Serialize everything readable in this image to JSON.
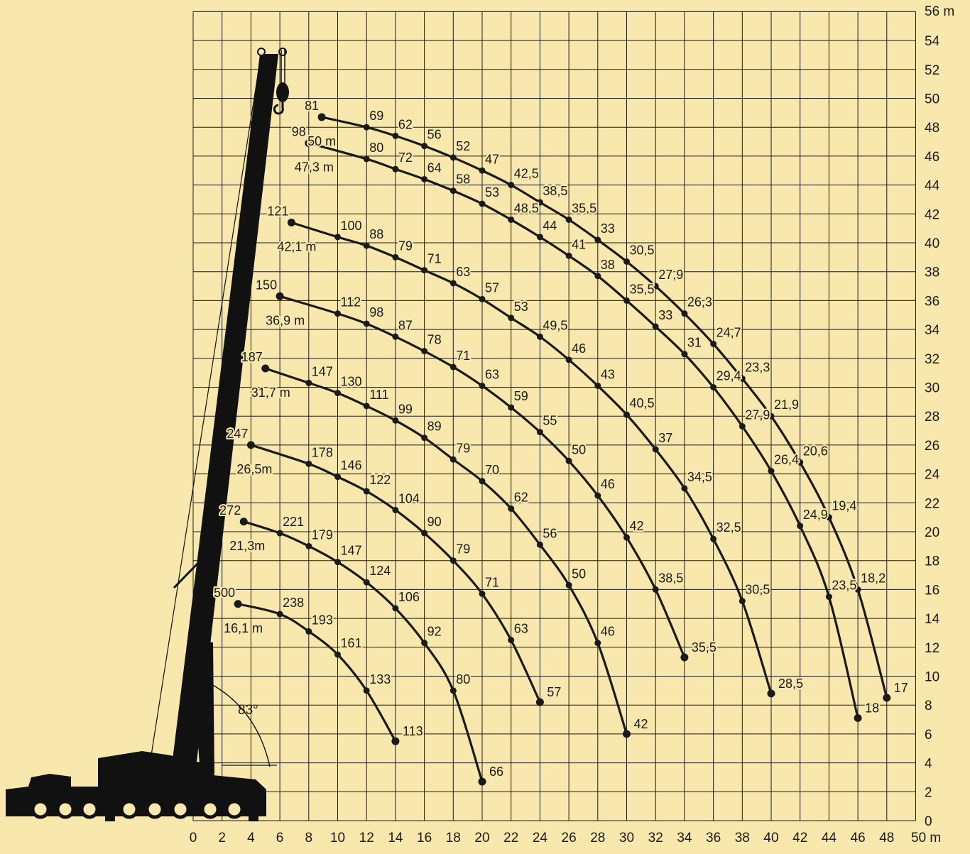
{
  "chart_data": {
    "type": "line",
    "title": "",
    "x_unit_label": "50 m",
    "y_unit_label": "56 m",
    "x_ticks": [
      "0",
      "2",
      "4",
      "6",
      "8",
      "10",
      "12",
      "14",
      "16",
      "18",
      "20",
      "22",
      "24",
      "26",
      "28",
      "30",
      "32",
      "34",
      "36",
      "38",
      "40",
      "42",
      "44",
      "46",
      "48"
    ],
    "y_ticks": [
      "0",
      "2",
      "4",
      "6",
      "8",
      "10",
      "12",
      "14",
      "16",
      "18",
      "20",
      "22",
      "24",
      "26",
      "28",
      "30",
      "32",
      "34",
      "36",
      "38",
      "40",
      "42",
      "44",
      "46",
      "48",
      "50",
      "52",
      "54"
    ],
    "xlim": [
      0,
      50
    ],
    "ylim": [
      0,
      56
    ],
    "grid": true,
    "boom_angle_label": "83°",
    "series": [
      {
        "name": "16,1 m",
        "points": [
          {
            "x": 3.1,
            "y": 15.0,
            "label": "500"
          },
          {
            "x": 6,
            "y": 14.3,
            "label": "238"
          },
          {
            "x": 8,
            "y": 13.1,
            "label": "193"
          },
          {
            "x": 10,
            "y": 11.5,
            "label": "161"
          },
          {
            "x": 12,
            "y": 9.0,
            "label": "133"
          },
          {
            "x": 14,
            "y": 5.5,
            "label": "113"
          }
        ]
      },
      {
        "name": "21,3m",
        "points": [
          {
            "x": 3.5,
            "y": 20.7,
            "label": "272"
          },
          {
            "x": 6,
            "y": 19.9,
            "label": "221"
          },
          {
            "x": 8,
            "y": 19.0,
            "label": "179"
          },
          {
            "x": 10,
            "y": 17.9,
            "label": "147"
          },
          {
            "x": 12,
            "y": 16.5,
            "label": "124"
          },
          {
            "x": 14,
            "y": 14.7,
            "label": "106"
          },
          {
            "x": 16,
            "y": 12.3,
            "label": "92"
          },
          {
            "x": 18,
            "y": 9.0,
            "label": "80"
          },
          {
            "x": 20,
            "y": 2.7,
            "label": "66"
          }
        ]
      },
      {
        "name": "26,5m",
        "points": [
          {
            "x": 4.0,
            "y": 26.0,
            "label": "247"
          },
          {
            "x": 8,
            "y": 24.7,
            "label": "178"
          },
          {
            "x": 10,
            "y": 23.8,
            "label": "146"
          },
          {
            "x": 12,
            "y": 22.8,
            "label": "122"
          },
          {
            "x": 14,
            "y": 21.5,
            "label": "104"
          },
          {
            "x": 16,
            "y": 19.9,
            "label": "90"
          },
          {
            "x": 18,
            "y": 18.0,
            "label": "79"
          },
          {
            "x": 20,
            "y": 15.7,
            "label": "71"
          },
          {
            "x": 22,
            "y": 12.5,
            "label": "63"
          },
          {
            "x": 24,
            "y": 8.2,
            "label": "57"
          }
        ]
      },
      {
        "name": "31,7 m",
        "points": [
          {
            "x": 5.0,
            "y": 31.3,
            "label": "187"
          },
          {
            "x": 8,
            "y": 30.3,
            "label": "147"
          },
          {
            "x": 10,
            "y": 29.6,
            "label": "130"
          },
          {
            "x": 12,
            "y": 28.7,
            "label": "111"
          },
          {
            "x": 14,
            "y": 27.7,
            "label": "99"
          },
          {
            "x": 16,
            "y": 26.5,
            "label": "89"
          },
          {
            "x": 18,
            "y": 25.0,
            "label": "79"
          },
          {
            "x": 20,
            "y": 23.5,
            "label": "70"
          },
          {
            "x": 22,
            "y": 21.6,
            "label": "62"
          },
          {
            "x": 24,
            "y": 19.1,
            "label": "56"
          },
          {
            "x": 26,
            "y": 16.3,
            "label": "50"
          },
          {
            "x": 28,
            "y": 12.3,
            "label": "46"
          },
          {
            "x": 30,
            "y": 6.0,
            "label": "42"
          }
        ]
      },
      {
        "name": "36,9 m",
        "points": [
          {
            "x": 6.0,
            "y": 36.3,
            "label": "150"
          },
          {
            "x": 10,
            "y": 35.1,
            "label": "112"
          },
          {
            "x": 12,
            "y": 34.4,
            "label": "98"
          },
          {
            "x": 14,
            "y": 33.5,
            "label": "87"
          },
          {
            "x": 16,
            "y": 32.5,
            "label": "78"
          },
          {
            "x": 18,
            "y": 31.4,
            "label": "71"
          },
          {
            "x": 20,
            "y": 30.1,
            "label": "63"
          },
          {
            "x": 22,
            "y": 28.6,
            "label": "59"
          },
          {
            "x": 24,
            "y": 26.9,
            "label": "55"
          },
          {
            "x": 26,
            "y": 24.9,
            "label": "50"
          },
          {
            "x": 28,
            "y": 22.5,
            "label": "46"
          },
          {
            "x": 30,
            "y": 19.6,
            "label": "42"
          },
          {
            "x": 32,
            "y": 16.0,
            "label": "38,5"
          },
          {
            "x": 34,
            "y": 11.3,
            "label": "35,5"
          }
        ]
      },
      {
        "name": "42,1 m",
        "points": [
          {
            "x": 6.8,
            "y": 41.4,
            "label": "121"
          },
          {
            "x": 10,
            "y": 40.4,
            "label": "100"
          },
          {
            "x": 12,
            "y": 39.8,
            "label": "88"
          },
          {
            "x": 14,
            "y": 39.0,
            "label": "79"
          },
          {
            "x": 16,
            "y": 38.1,
            "label": "71"
          },
          {
            "x": 18,
            "y": 37.2,
            "label": "63"
          },
          {
            "x": 20,
            "y": 36.1,
            "label": "57"
          },
          {
            "x": 22,
            "y": 34.8,
            "label": "53"
          },
          {
            "x": 24,
            "y": 33.5,
            "label": "49,5"
          },
          {
            "x": 26,
            "y": 31.9,
            "label": "46"
          },
          {
            "x": 28,
            "y": 30.1,
            "label": "43"
          },
          {
            "x": 30,
            "y": 28.1,
            "label": "40,5"
          },
          {
            "x": 32,
            "y": 25.7,
            "label": "37"
          },
          {
            "x": 34,
            "y": 23.0,
            "label": "34,5"
          },
          {
            "x": 36,
            "y": 19.5,
            "label": "32,5"
          },
          {
            "x": 38,
            "y": 15.2,
            "label": "30,5"
          },
          {
            "x": 40,
            "y": 8.8,
            "label": "28,5"
          }
        ]
      },
      {
        "name": "47,3 m",
        "points": [
          {
            "x": 8.0,
            "y": 46.9,
            "label": "98"
          },
          {
            "x": 12,
            "y": 45.8,
            "label": "80"
          },
          {
            "x": 14,
            "y": 45.1,
            "label": "72"
          },
          {
            "x": 16,
            "y": 44.4,
            "label": "64"
          },
          {
            "x": 18,
            "y": 43.6,
            "label": "58"
          },
          {
            "x": 20,
            "y": 42.7,
            "label": "53"
          },
          {
            "x": 22,
            "y": 41.6,
            "label": "48,5"
          },
          {
            "x": 24,
            "y": 40.4,
            "label": "44"
          },
          {
            "x": 26,
            "y": 39.1,
            "label": "41"
          },
          {
            "x": 28,
            "y": 37.7,
            "label": "38"
          },
          {
            "x": 30,
            "y": 36.0,
            "label": "35,5"
          },
          {
            "x": 32,
            "y": 34.2,
            "label": "33"
          },
          {
            "x": 34,
            "y": 32.3,
            "label": "31"
          },
          {
            "x": 36,
            "y": 30.0,
            "label": "29,4"
          },
          {
            "x": 38,
            "y": 27.3,
            "label": "27,9"
          },
          {
            "x": 40,
            "y": 24.2,
            "label": "26,4"
          },
          {
            "x": 42,
            "y": 20.4,
            "label": "24,9"
          },
          {
            "x": 44,
            "y": 15.5,
            "label": "23,5"
          },
          {
            "x": 46,
            "y": 7.1,
            "label": "18"
          }
        ]
      },
      {
        "name": "50 m",
        "points": [
          {
            "x": 8.9,
            "y": 48.7,
            "label": "81"
          },
          {
            "x": 12,
            "y": 48.0,
            "label": "69"
          },
          {
            "x": 14,
            "y": 47.4,
            "label": "62"
          },
          {
            "x": 16,
            "y": 46.7,
            "label": "56"
          },
          {
            "x": 18,
            "y": 45.9,
            "label": "52"
          },
          {
            "x": 20,
            "y": 45.0,
            "label": "47"
          },
          {
            "x": 22,
            "y": 44.0,
            "label": "42,5"
          },
          {
            "x": 24,
            "y": 42.8,
            "label": "38,5"
          },
          {
            "x": 26,
            "y": 41.6,
            "label": "35,5"
          },
          {
            "x": 28,
            "y": 40.2,
            "label": "33"
          },
          {
            "x": 30,
            "y": 38.7,
            "label": "30,5"
          },
          {
            "x": 32,
            "y": 37.0,
            "label": "27,9"
          },
          {
            "x": 34,
            "y": 35.1,
            "label": "26,3"
          },
          {
            "x": 36,
            "y": 33.0,
            "label": "24,7"
          },
          {
            "x": 38,
            "y": 30.6,
            "label": "23,3"
          },
          {
            "x": 40,
            "y": 28.0,
            "label": "21,9"
          },
          {
            "x": 42,
            "y": 24.8,
            "label": "20,6"
          },
          {
            "x": 44,
            "y": 21.0,
            "label": "19,4"
          },
          {
            "x": 46,
            "y": 16.0,
            "label": "18,2"
          },
          {
            "x": 48,
            "y": 8.5,
            "label": "17"
          }
        ]
      }
    ]
  }
}
